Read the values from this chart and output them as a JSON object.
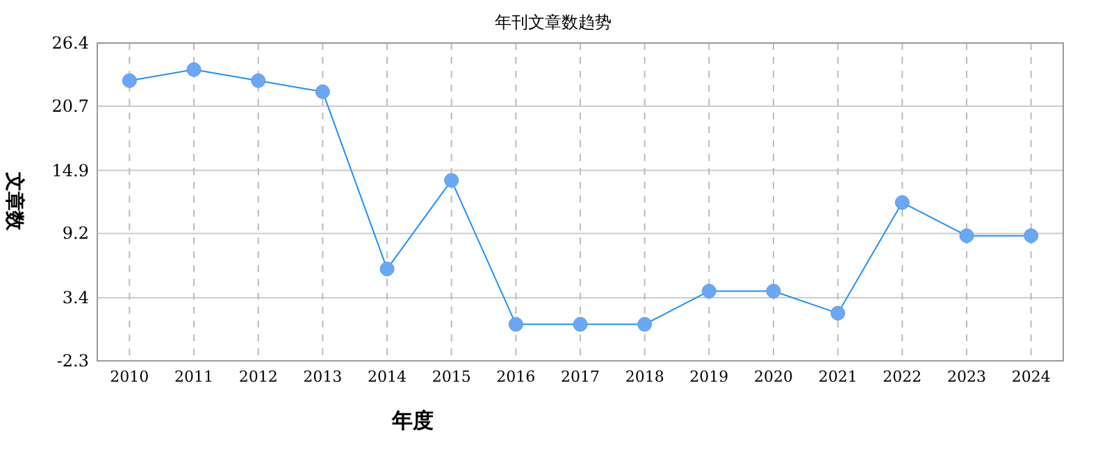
{
  "chart_data": {
    "type": "line",
    "title": "年刊文章数趋势",
    "xlabel": "年度",
    "ylabel": "文章数",
    "categories": [
      "2010",
      "2011",
      "2012",
      "2013",
      "2014",
      "2015",
      "2016",
      "2017",
      "2018",
      "2019",
      "2020",
      "2021",
      "2022",
      "2023",
      "2024"
    ],
    "series": [
      {
        "color": "#1e90ff",
        "values": [
          23,
          24,
          23,
          22,
          6,
          14,
          1,
          1,
          1,
          4,
          4,
          2,
          12,
          9,
          9
        ]
      }
    ],
    "ylim": [
      -2.3,
      26.4
    ],
    "yticks": [
      -2.3,
      3.4,
      9.2,
      14.9,
      20.7,
      26.4
    ],
    "grid": true,
    "marker": "circle",
    "line_style": "solid"
  }
}
